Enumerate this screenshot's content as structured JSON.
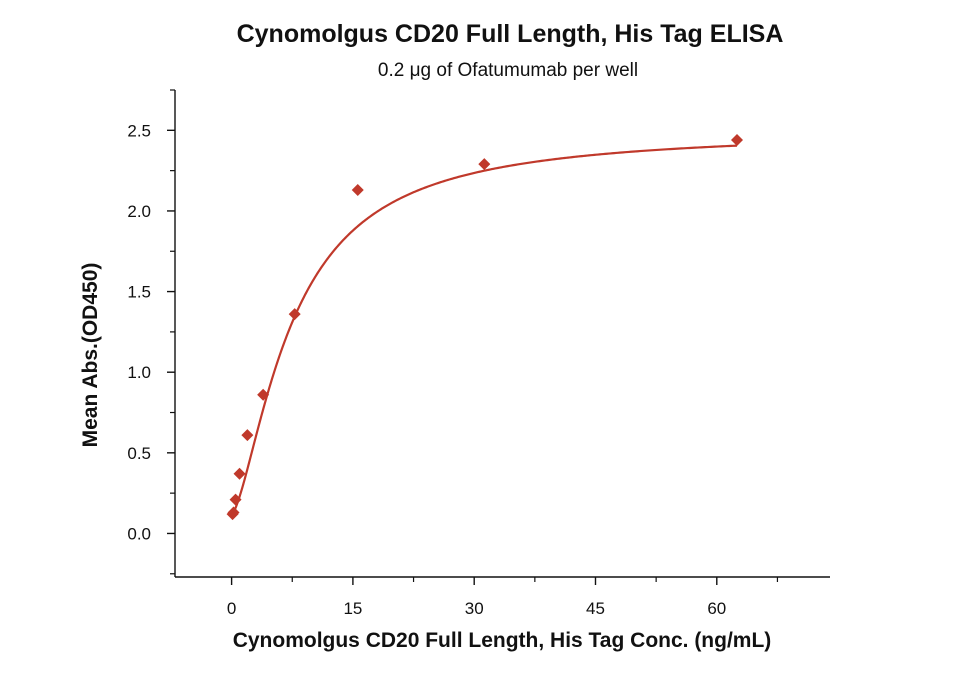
{
  "chart_data": {
    "type": "scatter",
    "title": "Cynomolgus CD20 Full Length, His Tag ELISA",
    "subtitle": "0.2 μg of Ofatumumab per well",
    "xlabel": "Cynomolgus CD20 Full Length, His Tag Conc. (ng/mL)",
    "ylabel": "Mean Abs.(OD450)",
    "xlim": [
      -7,
      74
    ],
    "ylim": [
      -0.27,
      2.75
    ],
    "x_ticks": [
      0,
      15,
      30,
      45,
      60
    ],
    "y_ticks": [
      0.0,
      0.5,
      1.0,
      1.5,
      2.0,
      2.5
    ],
    "grid": false,
    "colors": {
      "series": "#c0392b",
      "axis": "#111111"
    },
    "series": [
      {
        "marker": "diamond",
        "x": [
          0.12,
          0.24,
          0.49,
          0.98,
          1.95,
          3.9,
          7.8,
          15.6,
          31.25,
          62.5
        ],
        "y": [
          0.12,
          0.13,
          0.21,
          0.37,
          0.61,
          0.86,
          1.36,
          2.13,
          2.29,
          2.44
        ]
      }
    ],
    "fit_curve": {
      "model": "4PL",
      "bottom": 0.12,
      "top": 2.5,
      "ec50": 7.5,
      "hill": 1.5,
      "x_range": [
        0.1,
        62.5
      ]
    }
  }
}
